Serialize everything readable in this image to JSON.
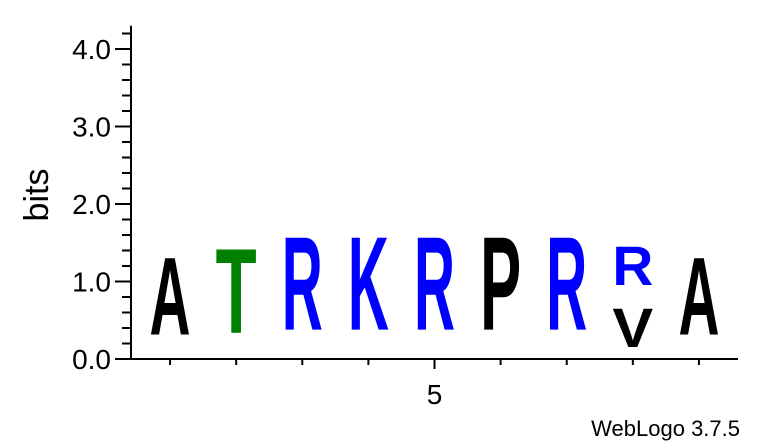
{
  "chart_data": {
    "type": "sequence-logo",
    "ylabel": "bits",
    "ylim": [
      0,
      4.3
    ],
    "yticks": [
      {
        "value": 0.0,
        "label": "0.0"
      },
      {
        "value": 1.0,
        "label": "1.0"
      },
      {
        "value": 2.0,
        "label": "2.0"
      },
      {
        "value": 3.0,
        "label": "3.0"
      },
      {
        "value": 4.0,
        "label": "4.0"
      }
    ],
    "xticks": [
      {
        "position": 5,
        "label": "5"
      }
    ],
    "positions": [
      {
        "pos": 1,
        "letters": [
          {
            "letter": "A",
            "bits": 1.6,
            "color": "#000000"
          }
        ]
      },
      {
        "pos": 2,
        "letters": [
          {
            "letter": "T",
            "bits": 1.75,
            "color": "#008000"
          }
        ]
      },
      {
        "pos": 3,
        "letters": [
          {
            "letter": "R",
            "bits": 1.93,
            "color": "#0000ff"
          }
        ]
      },
      {
        "pos": 4,
        "letters": [
          {
            "letter": "K",
            "bits": 1.93,
            "color": "#0000ff"
          }
        ]
      },
      {
        "pos": 5,
        "letters": [
          {
            "letter": "R",
            "bits": 1.93,
            "color": "#0000ff"
          }
        ]
      },
      {
        "pos": 6,
        "letters": [
          {
            "letter": "P",
            "bits": 1.93,
            "color": "#000000"
          }
        ]
      },
      {
        "pos": 7,
        "letters": [
          {
            "letter": "R",
            "bits": 1.93,
            "color": "#0000ff"
          }
        ]
      },
      {
        "pos": 8,
        "letters": [
          {
            "letter": "V",
            "bits": 0.8,
            "color": "#000000"
          },
          {
            "letter": "R",
            "bits": 0.8,
            "color": "#0000ff"
          }
        ]
      },
      {
        "pos": 9,
        "letters": [
          {
            "letter": "A",
            "bits": 1.6,
            "color": "#000000"
          }
        ]
      }
    ],
    "credit": "WebLogo 3.7.5"
  }
}
